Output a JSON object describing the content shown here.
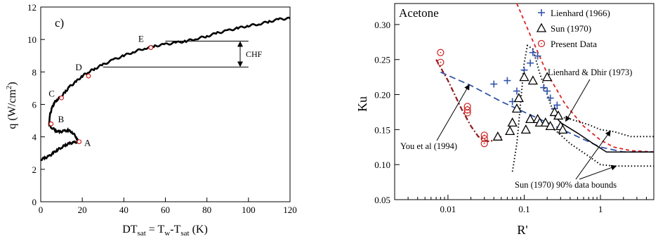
{
  "chart_data": [
    {
      "type": "line",
      "panel_label": "c)",
      "ylabel": "q (W/cm²)",
      "xlabel": "DT_sat = T_w-T_sat (K)",
      "xlim": [
        0,
        120
      ],
      "ylim": [
        0,
        12
      ],
      "xticks": [
        0,
        20,
        40,
        60,
        80,
        100,
        120
      ],
      "yticks": [
        0,
        2,
        4,
        6,
        8,
        10,
        12
      ],
      "series": [
        {
          "x": [
            0,
            2,
            4,
            6,
            8,
            10,
            12,
            14,
            16,
            18,
            17,
            15,
            13,
            11,
            9,
            7,
            5,
            4,
            4.5,
            5.5,
            6.5,
            8,
            10,
            12,
            14,
            17,
            20,
            23,
            26,
            30,
            35,
            40,
            45,
            50,
            55,
            60,
            65,
            70,
            75,
            80,
            85,
            90,
            95,
            100,
            105,
            110,
            115,
            120
          ],
          "y": [
            2.6,
            2.7,
            2.8,
            3.0,
            3.2,
            3.35,
            3.5,
            3.6,
            3.65,
            3.7,
            4.0,
            4.3,
            4.4,
            4.35,
            4.3,
            4.4,
            4.6,
            4.8,
            5.4,
            5.8,
            6.1,
            6.3,
            6.5,
            6.8,
            7.1,
            7.4,
            7.75,
            8.0,
            8.2,
            8.45,
            8.75,
            9.0,
            9.25,
            9.45,
            9.6,
            9.7,
            9.8,
            9.9,
            10.05,
            10.2,
            10.4,
            10.55,
            10.7,
            10.85,
            10.95,
            11.1,
            11.25,
            11.3
          ]
        }
      ],
      "points": [
        {
          "label": "A",
          "x": 18.5,
          "y": 3.7
        },
        {
          "label": "B",
          "x": 5,
          "y": 4.8
        },
        {
          "label": "C",
          "x": 10,
          "y": 6.4
        },
        {
          "label": "D",
          "x": 23,
          "y": 7.75
        },
        {
          "label": "E",
          "x": 53,
          "y": 9.5
        }
      ],
      "annotation": "CHF",
      "chf_range": [
        8.3,
        9.9
      ]
    },
    {
      "type": "scatter",
      "title": "Acetone",
      "xlabel": "R'",
      "ylabel": "Ku",
      "xscale": "log",
      "xlim": [
        0.002,
        5
      ],
      "ylim": [
        0.05,
        0.33
      ],
      "xticks": [
        0.01,
        0.1,
        1
      ],
      "xtick_labels": [
        "0.01",
        "0.1",
        "1"
      ],
      "yticks": [
        0.05,
        0.1,
        0.15,
        0.2,
        0.25,
        0.3
      ],
      "ytick_labels": [
        "0.05",
        "0.10",
        "0.15",
        "0.20",
        "0.25",
        "0.30"
      ],
      "legend_position": "top-right",
      "series": [
        {
          "name": "Lienhard (1966)",
          "marker": "plus",
          "color": "#3355aa",
          "x": [
            0.04,
            0.06,
            0.07,
            0.08,
            0.1,
            0.12,
            0.13,
            0.15,
            0.18,
            0.2,
            0.22,
            0.25,
            0.27
          ],
          "y": [
            0.215,
            0.22,
            0.19,
            0.205,
            0.235,
            0.245,
            0.26,
            0.255,
            0.21,
            0.205,
            0.195,
            0.18,
            0.185
          ]
        },
        {
          "name": "Sun (1970)",
          "marker": "triangle",
          "color": "#000000",
          "x": [
            0.045,
            0.065,
            0.07,
            0.08,
            0.085,
            0.1,
            0.105,
            0.12,
            0.13,
            0.15,
            0.16,
            0.19,
            0.2,
            0.22,
            0.25,
            0.28,
            0.3,
            0.32
          ],
          "y": [
            0.14,
            0.148,
            0.16,
            0.18,
            0.195,
            0.225,
            0.15,
            0.165,
            0.22,
            0.165,
            0.16,
            0.16,
            0.225,
            0.155,
            0.175,
            0.17,
            0.155,
            0.15
          ]
        },
        {
          "name": "Present Data",
          "marker": "circle",
          "color": "#cc2222",
          "x": [
            0.008,
            0.008,
            0.018,
            0.018,
            0.018,
            0.03,
            0.03,
            0.03
          ],
          "y": [
            0.26,
            0.246,
            0.183,
            0.178,
            0.174,
            0.142,
            0.137,
            0.13
          ]
        }
      ],
      "curves": [
        {
          "style": "dashed-red",
          "x": [
            0.08,
            0.12,
            0.2,
            0.35,
            0.6,
            1.0,
            1.5,
            2.5,
            5
          ],
          "y": [
            0.33,
            0.285,
            0.23,
            0.185,
            0.155,
            0.135,
            0.125,
            0.12,
            0.118
          ]
        },
        {
          "style": "dash-dot-darkred",
          "x": [
            0.007,
            0.01,
            0.015,
            0.02,
            0.025,
            0.03,
            0.035,
            0.04,
            0.05
          ],
          "y": [
            0.25,
            0.22,
            0.18,
            0.155,
            0.14,
            0.135,
            0.133,
            0.135,
            0.14
          ]
        },
        {
          "style": "dashed-blue",
          "x": [
            0.008,
            0.02,
            0.05,
            0.1,
            0.2,
            0.5,
            1.0,
            2.0,
            5
          ],
          "y": [
            0.232,
            0.213,
            0.19,
            0.175,
            0.16,
            0.14,
            0.125,
            0.118,
            0.118
          ]
        },
        {
          "style": "solid-black",
          "x": [
            0.25,
            0.3,
            0.5,
            0.8,
            1.2,
            2,
            5
          ],
          "y": [
            0.17,
            0.16,
            0.145,
            0.13,
            0.118,
            0.118,
            0.118
          ]
        },
        {
          "style": "dotted-black",
          "x": [
            0.07,
            0.08,
            0.09,
            0.1,
            0.11,
            0.13,
            0.16,
            0.2,
            0.25
          ],
          "y": [
            0.09,
            0.13,
            0.19,
            0.245,
            0.27,
            0.265,
            0.23,
            0.2,
            0.17
          ]
        },
        {
          "style": "dotted-black",
          "x": [
            0.25,
            0.4,
            0.7,
            1.0,
            1.5,
            2.5,
            5
          ],
          "y": [
            0.17,
            0.165,
            0.157,
            0.15,
            0.147,
            0.14,
            0.14
          ]
        },
        {
          "style": "dotted-black",
          "x": [
            0.25,
            0.4,
            0.7,
            1.0,
            1.5,
            2.5,
            5
          ],
          "y": [
            0.15,
            0.13,
            0.112,
            0.1,
            0.098,
            0.098,
            0.098
          ]
        }
      ],
      "annotations": [
        {
          "text": "Lienhard & Dhir (1973)"
        },
        {
          "text": "You et al (1994)"
        },
        {
          "text": "Sun (1970) 90% data bounds"
        }
      ]
    }
  ]
}
